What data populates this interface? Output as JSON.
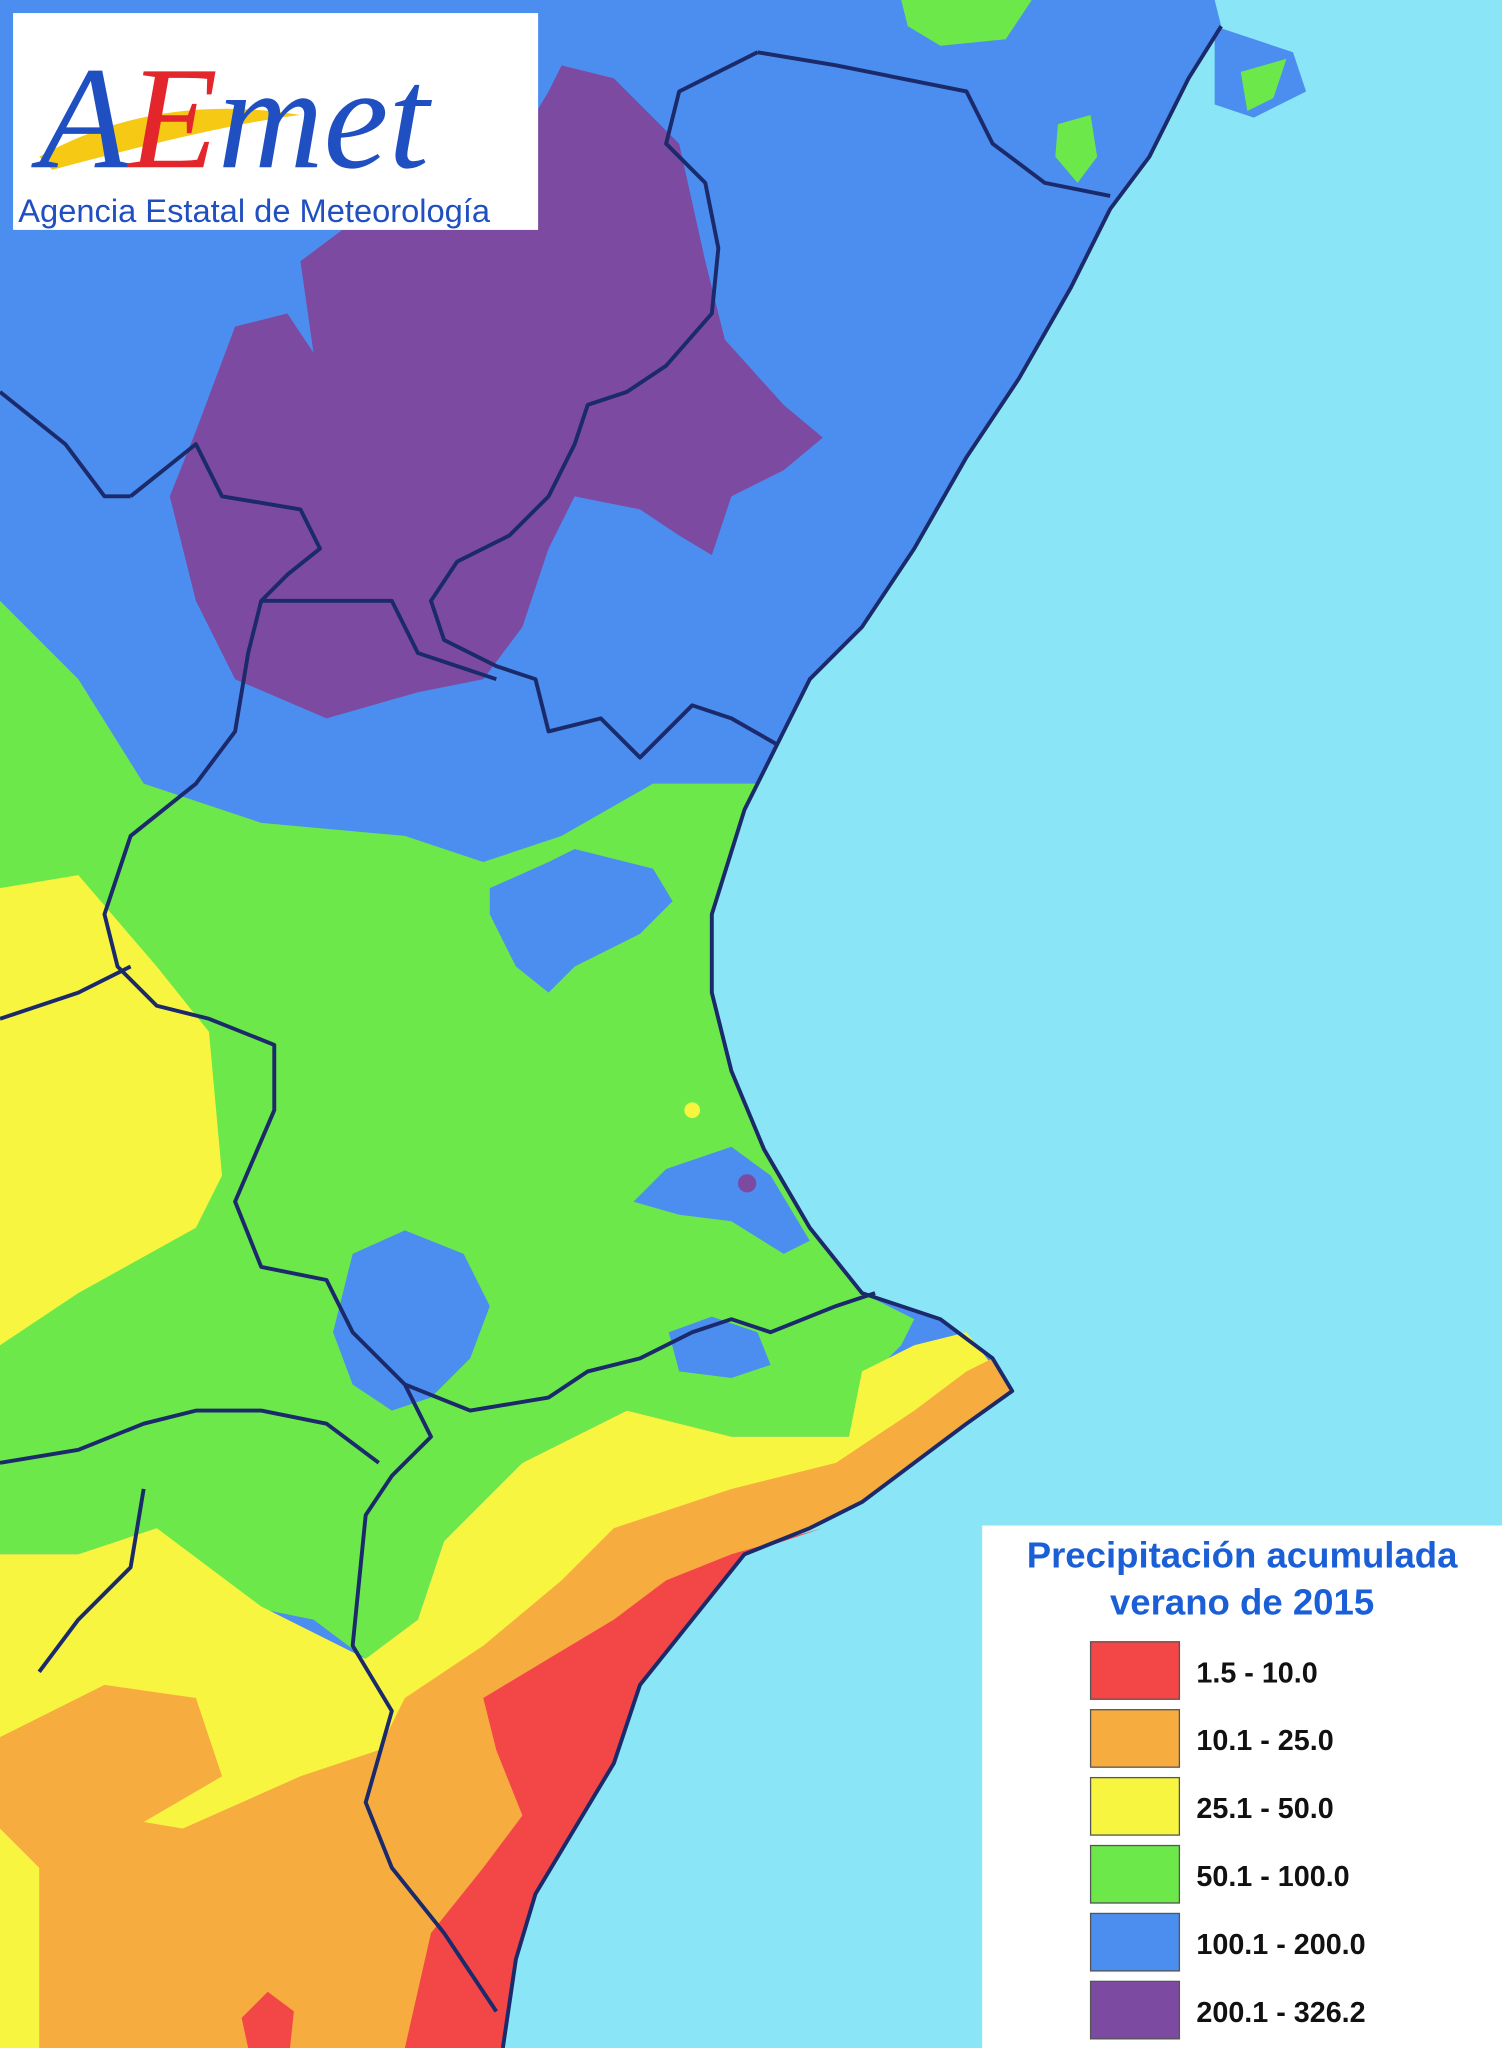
{
  "logo": {
    "wordmark": "AEmet",
    "agency": "Agencia Estatal de Meteorología"
  },
  "legend": {
    "title": [
      "Precipitación acumulada",
      "verano de 2015"
    ],
    "items": [
      {
        "label": "1.5 - 10.0",
        "color": "#f34646"
      },
      {
        "label": "10.1 - 25.0",
        "color": "#f7ac3f"
      },
      {
        "label": "25.1 - 50.0",
        "color": "#f8f540"
      },
      {
        "label": "50.1 - 100.0",
        "color": "#6de84a"
      },
      {
        "label": "100.1 - 200.0",
        "color": "#4b8ef0"
      },
      {
        "label": "200.1 - 326.2",
        "color": "#7d4aa2"
      }
    ]
  }
}
